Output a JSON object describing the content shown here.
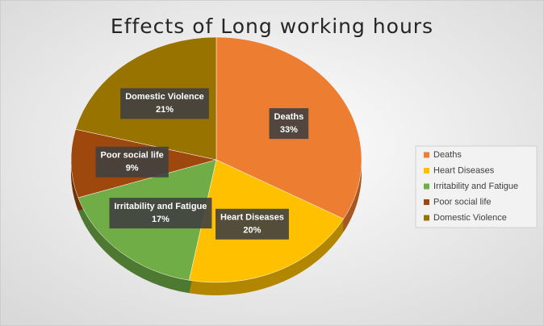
{
  "chart_data": {
    "type": "pie",
    "title": "Effects of Long working hours",
    "categories": [
      "Deaths",
      "Heart Diseases",
      "Irritability and Fatigue",
      "Poor social life",
      "Domestic Violence"
    ],
    "values": [
      33,
      20,
      17,
      9,
      21
    ],
    "value_labels": [
      "33%",
      "20%",
      "17%",
      "9%",
      "21%"
    ],
    "colors": [
      "#ED7D31",
      "#FFC000",
      "#70AD47",
      "#9E480E",
      "#997300"
    ],
    "legend": "right"
  }
}
